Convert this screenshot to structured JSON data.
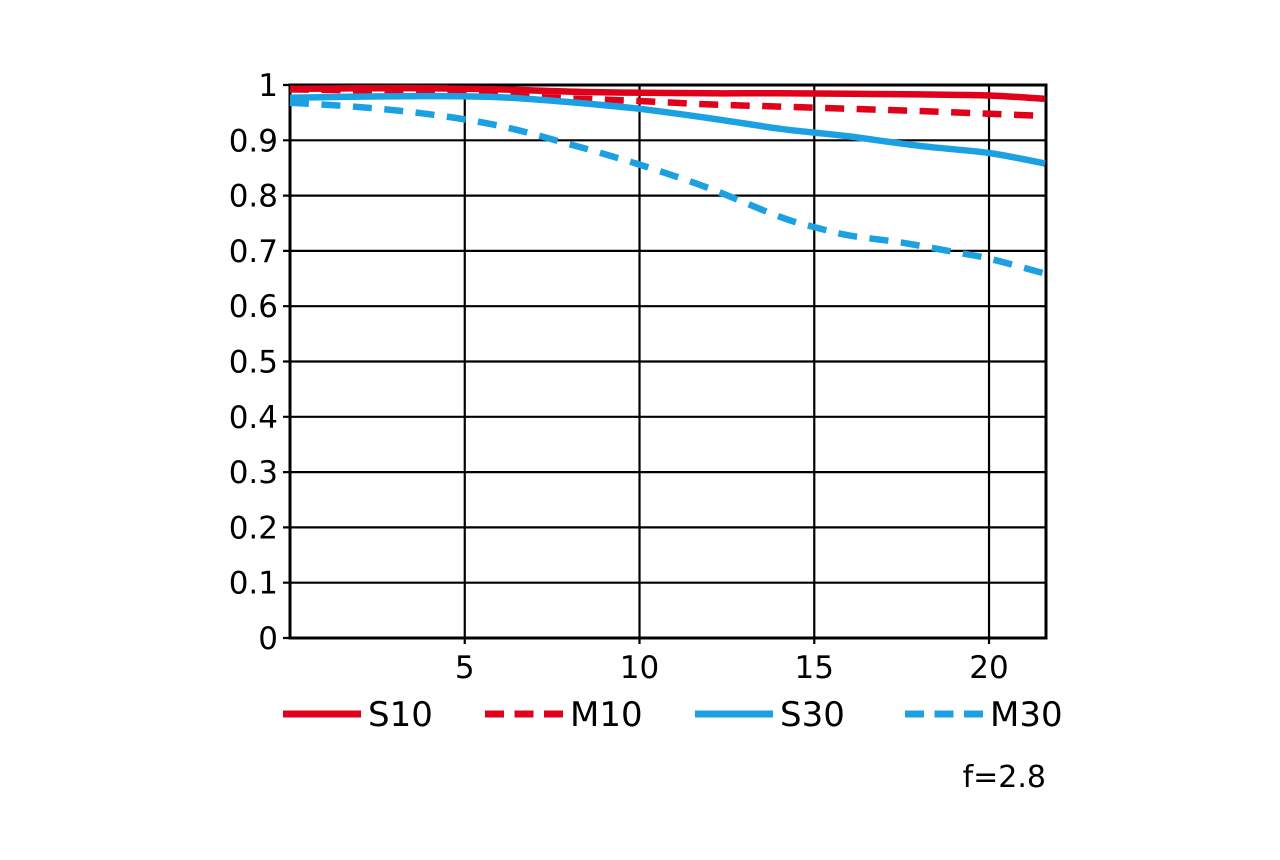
{
  "chart_data": {
    "type": "line",
    "title": "",
    "xlabel": "",
    "ylabel": "",
    "xlim": [
      0,
      21.63
    ],
    "ylim": [
      0,
      1
    ],
    "xticks": [
      5,
      10,
      15,
      20
    ],
    "ytick_labels": [
      "0",
      "0.1",
      "0.2",
      "0.3",
      "0.4",
      "0.5",
      "0.6",
      "0.7",
      "0.8",
      "0.9",
      "1"
    ],
    "grid": {
      "horizontal_step": 0.1,
      "vertical_step": 5,
      "color": "#000000"
    },
    "annotation": "f=2.8",
    "legend": {
      "position": "below-chart",
      "items": [
        {
          "label": "S10",
          "color": "#e0001a",
          "style": "solid"
        },
        {
          "label": "M10",
          "color": "#e0001a",
          "style": "dashed"
        },
        {
          "label": "S30",
          "color": "#1ba1e2",
          "style": "solid"
        },
        {
          "label": "M30",
          "color": "#1ba1e2",
          "style": "dashed"
        }
      ]
    },
    "series": [
      {
        "name": "S10",
        "color": "#e0001a",
        "style": "solid",
        "x": [
          0,
          2,
          4,
          6,
          8,
          10,
          12,
          14,
          16,
          18,
          20,
          21.6
        ],
        "y": [
          0.993,
          0.994,
          0.994,
          0.992,
          0.988,
          0.986,
          0.985,
          0.985,
          0.984,
          0.983,
          0.981,
          0.975
        ]
      },
      {
        "name": "M10",
        "color": "#e0001a",
        "style": "dashed",
        "x": [
          0,
          2,
          4,
          6,
          8,
          10,
          12,
          14,
          16,
          18,
          20,
          21.6
        ],
        "y": [
          0.992,
          0.99,
          0.986,
          0.981,
          0.976,
          0.971,
          0.965,
          0.961,
          0.957,
          0.953,
          0.948,
          0.944
        ]
      },
      {
        "name": "S30",
        "color": "#1ba1e2",
        "style": "solid",
        "x": [
          0,
          2,
          4,
          6,
          8,
          10,
          12,
          14,
          15,
          16,
          18,
          20,
          21.6
        ],
        "y": [
          0.977,
          0.979,
          0.98,
          0.978,
          0.969,
          0.957,
          0.94,
          0.921,
          0.914,
          0.907,
          0.89,
          0.877,
          0.858
        ]
      },
      {
        "name": "M30",
        "color": "#1ba1e2",
        "style": "dashed",
        "x": [
          0,
          2,
          4,
          6,
          8,
          10,
          12,
          14,
          15,
          16,
          17.5,
          19,
          20,
          21.6
        ],
        "y": [
          0.968,
          0.96,
          0.947,
          0.926,
          0.893,
          0.856,
          0.813,
          0.762,
          0.743,
          0.728,
          0.715,
          0.698,
          0.686,
          0.659
        ]
      }
    ]
  },
  "colors": {
    "red": "#e0001a",
    "blue": "#1ba1e2",
    "axis": "#000000",
    "background": "#ffffff"
  }
}
